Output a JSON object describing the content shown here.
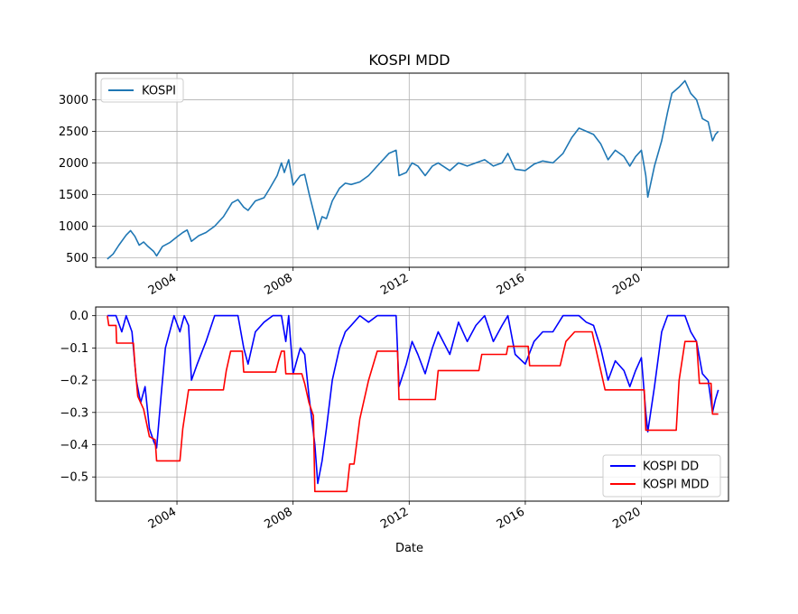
{
  "chart_data": [
    {
      "type": "line",
      "title": "KOSPI MDD",
      "xlabel": "",
      "ylabel": "",
      "xlim": [
        2001.2,
        2023.0
      ],
      "ylim": [
        350,
        3420
      ],
      "xticks": [
        2004,
        2008,
        2012,
        2016,
        2020
      ],
      "xtick_labels": [
        "2004",
        "2008",
        "2012",
        "2016",
        "2020"
      ],
      "yticks": [
        500,
        1000,
        1500,
        2000,
        2500,
        3000
      ],
      "ytick_labels": [
        "500",
        "1000",
        "1500",
        "2000",
        "2500",
        "3000"
      ],
      "grid": true,
      "legend": "upper left",
      "series": [
        {
          "name": "KOSPI",
          "color": "#1f77b4",
          "points": [
            [
              2001.6,
              480
            ],
            [
              2001.8,
              560
            ],
            [
              2002.0,
              700
            ],
            [
              2002.25,
              860
            ],
            [
              2002.4,
              930
            ],
            [
              2002.55,
              840
            ],
            [
              2002.7,
              700
            ],
            [
              2002.85,
              750
            ],
            [
              2003.0,
              680
            ],
            [
              2003.2,
              600
            ],
            [
              2003.3,
              530
            ],
            [
              2003.5,
              680
            ],
            [
              2003.75,
              740
            ],
            [
              2004.0,
              830
            ],
            [
              2004.2,
              900
            ],
            [
              2004.35,
              940
            ],
            [
              2004.5,
              760
            ],
            [
              2004.75,
              850
            ],
            [
              2005.0,
              900
            ],
            [
              2005.3,
              1000
            ],
            [
              2005.6,
              1150
            ],
            [
              2005.9,
              1370
            ],
            [
              2006.1,
              1420
            ],
            [
              2006.3,
              1300
            ],
            [
              2006.45,
              1250
            ],
            [
              2006.7,
              1400
            ],
            [
              2007.0,
              1450
            ],
            [
              2007.2,
              1600
            ],
            [
              2007.45,
              1800
            ],
            [
              2007.6,
              2000
            ],
            [
              2007.7,
              1850
            ],
            [
              2007.85,
              2050
            ],
            [
              2008.0,
              1650
            ],
            [
              2008.25,
              1800
            ],
            [
              2008.4,
              1820
            ],
            [
              2008.55,
              1520
            ],
            [
              2008.75,
              1150
            ],
            [
              2008.85,
              950
            ],
            [
              2009.0,
              1150
            ],
            [
              2009.15,
              1120
            ],
            [
              2009.35,
              1400
            ],
            [
              2009.6,
              1600
            ],
            [
              2009.8,
              1680
            ],
            [
              2010.0,
              1660
            ],
            [
              2010.3,
              1700
            ],
            [
              2010.6,
              1800
            ],
            [
              2010.9,
              1950
            ],
            [
              2011.3,
              2150
            ],
            [
              2011.55,
              2200
            ],
            [
              2011.65,
              1800
            ],
            [
              2011.9,
              1850
            ],
            [
              2012.1,
              2000
            ],
            [
              2012.3,
              1950
            ],
            [
              2012.55,
              1800
            ],
            [
              2012.8,
              1950
            ],
            [
              2013.0,
              2000
            ],
            [
              2013.4,
              1880
            ],
            [
              2013.7,
              2000
            ],
            [
              2014.0,
              1950
            ],
            [
              2014.3,
              2000
            ],
            [
              2014.6,
              2050
            ],
            [
              2014.9,
              1950
            ],
            [
              2015.2,
              2000
            ],
            [
              2015.4,
              2150
            ],
            [
              2015.65,
              1900
            ],
            [
              2016.0,
              1880
            ],
            [
              2016.3,
              1980
            ],
            [
              2016.6,
              2030
            ],
            [
              2016.95,
              2000
            ],
            [
              2017.3,
              2150
            ],
            [
              2017.6,
              2400
            ],
            [
              2017.85,
              2550
            ],
            [
              2018.1,
              2500
            ],
            [
              2018.35,
              2450
            ],
            [
              2018.6,
              2300
            ],
            [
              2018.85,
              2050
            ],
            [
              2019.1,
              2200
            ],
            [
              2019.4,
              2100
            ],
            [
              2019.6,
              1950
            ],
            [
              2019.8,
              2100
            ],
            [
              2020.0,
              2200
            ],
            [
              2020.15,
              1800
            ],
            [
              2020.22,
              1460
            ],
            [
              2020.45,
              1950
            ],
            [
              2020.7,
              2350
            ],
            [
              2020.9,
              2800
            ],
            [
              2021.05,
              3100
            ],
            [
              2021.3,
              3200
            ],
            [
              2021.5,
              3300
            ],
            [
              2021.7,
              3100
            ],
            [
              2021.9,
              3000
            ],
            [
              2022.1,
              2700
            ],
            [
              2022.3,
              2650
            ],
            [
              2022.45,
              2350
            ],
            [
              2022.55,
              2450
            ],
            [
              2022.65,
              2500
            ]
          ]
        }
      ]
    },
    {
      "type": "line",
      "title": "",
      "xlabel": "Date",
      "ylabel": "",
      "xlim": [
        2001.2,
        2023.0
      ],
      "ylim": [
        -0.575,
        0.027
      ],
      "xticks": [
        2004,
        2008,
        2012,
        2016,
        2020
      ],
      "xtick_labels": [
        "2004",
        "2008",
        "2012",
        "2016",
        "2020"
      ],
      "yticks": [
        0.0,
        -0.1,
        -0.2,
        -0.3,
        -0.4,
        -0.5
      ],
      "ytick_labels": [
        "0.0",
        "−0.1",
        "−0.2",
        "−0.3",
        "−0.4",
        "−0.5"
      ],
      "grid": true,
      "legend": "lower right",
      "series": [
        {
          "name": "KOSPI DD",
          "color": "#0000ff",
          "points": [
            [
              2001.6,
              0.0
            ],
            [
              2001.9,
              0.0
            ],
            [
              2002.1,
              -0.05
            ],
            [
              2002.25,
              0.0
            ],
            [
              2002.45,
              -0.05
            ],
            [
              2002.6,
              -0.2
            ],
            [
              2002.75,
              -0.27
            ],
            [
              2002.9,
              -0.22
            ],
            [
              2003.05,
              -0.35
            ],
            [
              2003.2,
              -0.39
            ],
            [
              2003.3,
              -0.41
            ],
            [
              2003.45,
              -0.25
            ],
            [
              2003.6,
              -0.1
            ],
            [
              2003.75,
              -0.05
            ],
            [
              2003.9,
              0.0
            ],
            [
              2004.1,
              -0.05
            ],
            [
              2004.25,
              0.0
            ],
            [
              2004.4,
              -0.03
            ],
            [
              2004.5,
              -0.2
            ],
            [
              2004.7,
              -0.15
            ],
            [
              2005.0,
              -0.08
            ],
            [
              2005.3,
              0.0
            ],
            [
              2005.6,
              0.0
            ],
            [
              2005.9,
              0.0
            ],
            [
              2006.1,
              0.0
            ],
            [
              2006.3,
              -0.1
            ],
            [
              2006.45,
              -0.15
            ],
            [
              2006.7,
              -0.05
            ],
            [
              2007.0,
              -0.02
            ],
            [
              2007.3,
              0.0
            ],
            [
              2007.6,
              0.0
            ],
            [
              2007.75,
              -0.08
            ],
            [
              2007.85,
              0.0
            ],
            [
              2008.0,
              -0.18
            ],
            [
              2008.25,
              -0.1
            ],
            [
              2008.4,
              -0.12
            ],
            [
              2008.55,
              -0.25
            ],
            [
              2008.75,
              -0.4
            ],
            [
              2008.85,
              -0.52
            ],
            [
              2009.0,
              -0.45
            ],
            [
              2009.15,
              -0.35
            ],
            [
              2009.35,
              -0.2
            ],
            [
              2009.6,
              -0.1
            ],
            [
              2009.8,
              -0.05
            ],
            [
              2010.0,
              -0.03
            ],
            [
              2010.3,
              0.0
            ],
            [
              2010.6,
              -0.02
            ],
            [
              2010.9,
              0.0
            ],
            [
              2011.3,
              0.0
            ],
            [
              2011.55,
              0.0
            ],
            [
              2011.65,
              -0.22
            ],
            [
              2011.9,
              -0.15
            ],
            [
              2012.1,
              -0.08
            ],
            [
              2012.3,
              -0.12
            ],
            [
              2012.55,
              -0.18
            ],
            [
              2012.8,
              -0.1
            ],
            [
              2013.0,
              -0.05
            ],
            [
              2013.4,
              -0.12
            ],
            [
              2013.7,
              -0.02
            ],
            [
              2014.0,
              -0.08
            ],
            [
              2014.3,
              -0.03
            ],
            [
              2014.6,
              0.0
            ],
            [
              2014.9,
              -0.08
            ],
            [
              2015.2,
              -0.03
            ],
            [
              2015.4,
              0.0
            ],
            [
              2015.65,
              -0.12
            ],
            [
              2016.0,
              -0.15
            ],
            [
              2016.3,
              -0.08
            ],
            [
              2016.6,
              -0.05
            ],
            [
              2016.95,
              -0.05
            ],
            [
              2017.3,
              0.0
            ],
            [
              2017.6,
              0.0
            ],
            [
              2017.85,
              0.0
            ],
            [
              2018.1,
              -0.02
            ],
            [
              2018.35,
              -0.03
            ],
            [
              2018.6,
              -0.1
            ],
            [
              2018.85,
              -0.2
            ],
            [
              2019.1,
              -0.14
            ],
            [
              2019.4,
              -0.17
            ],
            [
              2019.6,
              -0.22
            ],
            [
              2019.8,
              -0.17
            ],
            [
              2020.0,
              -0.13
            ],
            [
              2020.15,
              -0.3
            ],
            [
              2020.22,
              -0.36
            ],
            [
              2020.45,
              -0.22
            ],
            [
              2020.7,
              -0.05
            ],
            [
              2020.9,
              0.0
            ],
            [
              2021.05,
              0.0
            ],
            [
              2021.3,
              0.0
            ],
            [
              2021.5,
              0.0
            ],
            [
              2021.7,
              -0.05
            ],
            [
              2021.9,
              -0.08
            ],
            [
              2022.1,
              -0.18
            ],
            [
              2022.3,
              -0.2
            ],
            [
              2022.45,
              -0.3
            ],
            [
              2022.55,
              -0.26
            ],
            [
              2022.65,
              -0.23
            ]
          ]
        },
        {
          "name": "KOSPI MDD",
          "color": "#ff0000",
          "points": [
            [
              2001.6,
              0.0
            ],
            [
              2001.65,
              -0.03
            ],
            [
              2001.9,
              -0.03
            ],
            [
              2001.92,
              -0.085
            ],
            [
              2002.5,
              -0.085
            ],
            [
              2002.55,
              -0.15
            ],
            [
              2002.65,
              -0.25
            ],
            [
              2002.85,
              -0.29
            ],
            [
              2003.05,
              -0.375
            ],
            [
              2003.25,
              -0.385
            ],
            [
              2003.3,
              -0.45
            ],
            [
              2004.1,
              -0.45
            ],
            [
              2004.2,
              -0.35
            ],
            [
              2004.4,
              -0.23
            ],
            [
              2005.6,
              -0.23
            ],
            [
              2005.7,
              -0.17
            ],
            [
              2005.85,
              -0.11
            ],
            [
              2006.25,
              -0.11
            ],
            [
              2006.3,
              -0.175
            ],
            [
              2007.4,
              -0.175
            ],
            [
              2007.5,
              -0.14
            ],
            [
              2007.6,
              -0.11
            ],
            [
              2007.7,
              -0.11
            ],
            [
              2007.75,
              -0.18
            ],
            [
              2008.3,
              -0.18
            ],
            [
              2008.4,
              -0.21
            ],
            [
              2008.55,
              -0.27
            ],
            [
              2008.7,
              -0.31
            ],
            [
              2008.75,
              -0.545
            ],
            [
              2009.85,
              -0.545
            ],
            [
              2009.95,
              -0.46
            ],
            [
              2010.1,
              -0.46
            ],
            [
              2010.3,
              -0.32
            ],
            [
              2010.6,
              -0.2
            ],
            [
              2010.9,
              -0.11
            ],
            [
              2011.6,
              -0.11
            ],
            [
              2011.65,
              -0.26
            ],
            [
              2012.9,
              -0.26
            ],
            [
              2013.0,
              -0.17
            ],
            [
              2014.4,
              -0.17
            ],
            [
              2014.5,
              -0.12
            ],
            [
              2015.35,
              -0.12
            ],
            [
              2015.4,
              -0.095
            ],
            [
              2016.1,
              -0.095
            ],
            [
              2016.15,
              -0.155
            ],
            [
              2017.2,
              -0.155
            ],
            [
              2017.4,
              -0.08
            ],
            [
              2017.7,
              -0.05
            ],
            [
              2018.3,
              -0.05
            ],
            [
              2018.5,
              -0.13
            ],
            [
              2018.75,
              -0.23
            ],
            [
              2019.9,
              -0.23
            ],
            [
              2020.1,
              -0.23
            ],
            [
              2020.15,
              -0.355
            ],
            [
              2021.2,
              -0.355
            ],
            [
              2021.3,
              -0.2
            ],
            [
              2021.5,
              -0.08
            ],
            [
              2021.9,
              -0.08
            ],
            [
              2022.0,
              -0.21
            ],
            [
              2022.4,
              -0.21
            ],
            [
              2022.45,
              -0.305
            ],
            [
              2022.65,
              -0.305
            ]
          ]
        }
      ]
    }
  ]
}
